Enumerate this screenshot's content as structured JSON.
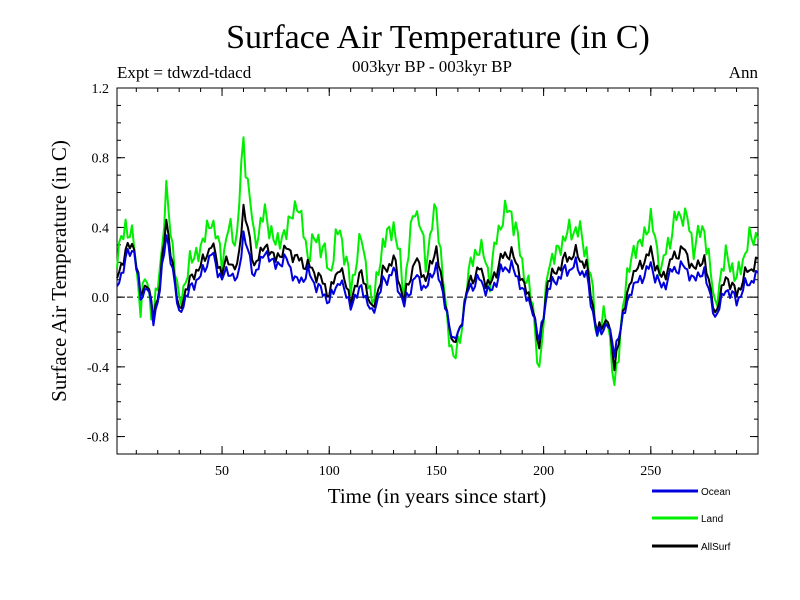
{
  "header": {
    "title": "Surface Air Temperature (in C)",
    "experiment": "Expt = tdwzd-tdacd",
    "period": "003kyr BP - 003kyr BP",
    "season": "Ann"
  },
  "chart_data": {
    "type": "line",
    "title": "Surface Air Temperature (in C)",
    "xlabel": "Time (in years since start)",
    "ylabel": "Surface Air Temperature (in C)",
    "xlim": [
      1,
      300
    ],
    "ylim": [
      -0.9,
      1.2
    ],
    "xticks": [
      50,
      100,
      150,
      200,
      250
    ],
    "yticks": [
      -0.8,
      -0.4,
      0.0,
      0.4,
      0.8,
      1.2
    ],
    "ytick_labels": [
      "-0.8",
      "-0.4",
      "0.0",
      "0.4",
      "0.8",
      "1.2"
    ],
    "reference_line": {
      "y": 0.0,
      "style": "dashed"
    },
    "legend_position": "bottom-right, below plot",
    "x_keypoints": [
      1,
      5,
      9,
      12,
      15,
      18,
      21,
      24,
      27,
      30,
      35,
      40,
      45,
      50,
      53,
      57,
      60,
      65,
      70,
      75,
      80,
      85,
      90,
      95,
      100,
      105,
      110,
      115,
      120,
      125,
      130,
      135,
      140,
      145,
      150,
      155,
      158,
      161,
      165,
      170,
      175,
      180,
      185,
      190,
      195,
      198,
      202,
      206,
      210,
      215,
      220,
      225,
      230,
      233,
      237,
      241,
      245,
      250,
      255,
      260,
      265,
      270,
      275,
      280,
      285,
      290,
      295,
      300
    ],
    "series": [
      {
        "name": "Ocean",
        "color": "#0000dd",
        "values": [
          0.05,
          0.22,
          0.28,
          -0.02,
          0.08,
          -0.14,
          0.05,
          0.36,
          0.15,
          -0.1,
          0.05,
          0.12,
          0.25,
          0.1,
          0.16,
          0.08,
          0.36,
          0.12,
          0.26,
          0.18,
          0.22,
          0.08,
          0.14,
          0.05,
          -0.02,
          0.1,
          -0.05,
          0.06,
          -0.1,
          0.08,
          0.15,
          -0.05,
          0.12,
          0.05,
          0.18,
          -0.1,
          -0.26,
          -0.18,
          0.05,
          0.1,
          0.02,
          0.15,
          0.18,
          0.05,
          -0.08,
          -0.25,
          0.05,
          0.1,
          0.15,
          0.18,
          0.12,
          -0.22,
          -0.15,
          -0.32,
          -0.12,
          0.05,
          0.1,
          0.18,
          0.05,
          0.15,
          0.18,
          0.1,
          0.15,
          -0.12,
          0.05,
          -0.02,
          0.08,
          0.12
        ]
      },
      {
        "name": "Land",
        "color": "#00ee00",
        "values": [
          0.22,
          0.42,
          0.3,
          -0.05,
          0.12,
          -0.15,
          0.18,
          0.58,
          0.3,
          -0.05,
          0.2,
          0.28,
          0.45,
          0.22,
          0.38,
          0.35,
          0.9,
          0.32,
          0.48,
          0.3,
          0.38,
          0.55,
          0.25,
          0.35,
          0.15,
          0.4,
          0.05,
          0.35,
          -0.05,
          0.3,
          0.42,
          0.05,
          0.55,
          0.22,
          0.52,
          -0.15,
          -0.35,
          -0.25,
          0.15,
          0.3,
          0.12,
          0.45,
          0.5,
          0.2,
          -0.05,
          -0.45,
          0.18,
          0.25,
          0.35,
          0.4,
          0.28,
          -0.2,
          -0.1,
          -0.55,
          -0.05,
          0.25,
          0.3,
          0.45,
          0.15,
          0.4,
          0.5,
          0.3,
          0.4,
          -0.05,
          0.25,
          0.1,
          0.3,
          0.38
        ]
      },
      {
        "name": "AllSurf",
        "color": "#000000",
        "values": [
          0.1,
          0.27,
          0.3,
          0.0,
          0.1,
          -0.12,
          0.08,
          0.44,
          0.18,
          -0.08,
          0.1,
          0.18,
          0.3,
          0.14,
          0.22,
          0.15,
          0.52,
          0.18,
          0.3,
          0.22,
          0.28,
          0.22,
          0.18,
          0.12,
          0.02,
          0.18,
          -0.02,
          0.15,
          -0.08,
          0.14,
          0.22,
          -0.02,
          0.22,
          0.1,
          0.28,
          -0.1,
          -0.28,
          -0.18,
          0.08,
          0.16,
          0.06,
          0.22,
          0.26,
          0.1,
          -0.06,
          -0.3,
          0.1,
          0.15,
          0.22,
          0.25,
          0.18,
          -0.2,
          -0.12,
          -0.4,
          -0.1,
          0.12,
          0.18,
          0.26,
          0.1,
          0.22,
          0.28,
          0.16,
          0.22,
          -0.1,
          0.12,
          0.02,
          0.15,
          0.2
        ]
      }
    ]
  }
}
